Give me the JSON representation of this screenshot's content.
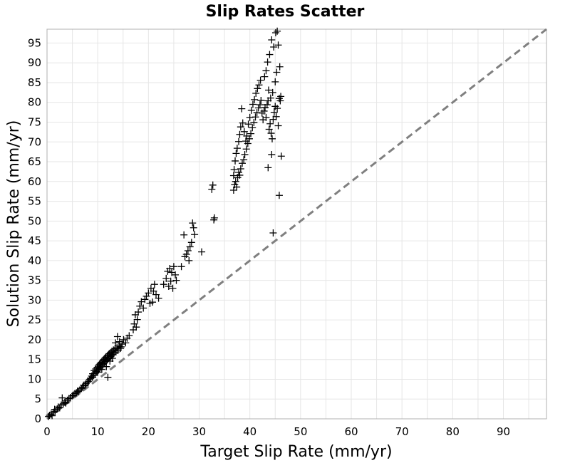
{
  "chart_data": {
    "type": "scatter",
    "title": "Slip Rates Scatter",
    "xlabel": "Target Slip Rate (mm/yr)",
    "ylabel": "Solution Slip Rate (mm/yr)",
    "xlim": [
      0,
      98.5
    ],
    "ylim": [
      0,
      98.5
    ],
    "xticks": [
      0,
      10,
      20,
      30,
      40,
      50,
      60,
      70,
      80,
      90
    ],
    "yticks": [
      0,
      5,
      10,
      15,
      20,
      25,
      30,
      35,
      40,
      45,
      50,
      55,
      60,
      65,
      70,
      75,
      80,
      85,
      90,
      95
    ],
    "grid": true,
    "marker": "plus",
    "marker_color": "#000000",
    "reference_line": {
      "style": "dashed",
      "color": "#808080",
      "from": [
        0,
        0
      ],
      "to": [
        98.5,
        98.5
      ]
    },
    "points": [
      [
        0.3,
        0.6
      ],
      [
        0.5,
        0.9
      ],
      [
        0.8,
        1.2
      ],
      [
        1.0,
        0.8
      ],
      [
        1.3,
        1.6
      ],
      [
        1.5,
        2.4
      ],
      [
        1.6,
        1.9
      ],
      [
        2.0,
        2.5
      ],
      [
        2.2,
        3.0
      ],
      [
        2.5,
        2.8
      ],
      [
        2.8,
        3.5
      ],
      [
        3.0,
        5.3
      ],
      [
        3.2,
        3.8
      ],
      [
        3.5,
        4.2
      ],
      [
        3.7,
        4.0
      ],
      [
        4.0,
        4.7
      ],
      [
        4.3,
        5.1
      ],
      [
        4.6,
        5.4
      ],
      [
        5.0,
        5.8
      ],
      [
        5.2,
        6.0
      ],
      [
        5.5,
        6.4
      ],
      [
        5.8,
        6.6
      ],
      [
        6.0,
        7.0
      ],
      [
        6.2,
        6.9
      ],
      [
        6.5,
        7.3
      ],
      [
        6.8,
        7.7
      ],
      [
        7.0,
        8.0
      ],
      [
        7.2,
        8.5
      ],
      [
        7.5,
        8.4
      ],
      [
        7.7,
        8.9
      ],
      [
        8.0,
        9.3
      ],
      [
        8.2,
        9.5
      ],
      [
        8.4,
        10.0
      ],
      [
        8.6,
        10.3
      ],
      [
        8.8,
        10.8
      ],
      [
        9.0,
        10.5
      ],
      [
        9.0,
        11.4
      ],
      [
        9.2,
        11.0
      ],
      [
        9.3,
        12.2
      ],
      [
        9.5,
        11.5
      ],
      [
        9.6,
        12.6
      ],
      [
        9.8,
        12.0
      ],
      [
        9.9,
        13.0
      ],
      [
        10.0,
        11.8
      ],
      [
        10.1,
        13.3
      ],
      [
        10.2,
        12.4
      ],
      [
        10.3,
        13.7
      ],
      [
        10.4,
        12.8
      ],
      [
        10.5,
        14.0
      ],
      [
        10.6,
        13.1
      ],
      [
        10.7,
        14.3
      ],
      [
        10.8,
        12.5
      ],
      [
        10.9,
        13.6
      ],
      [
        11.0,
        14.7
      ],
      [
        11.1,
        13.9
      ],
      [
        11.2,
        15.0
      ],
      [
        11.3,
        14.2
      ],
      [
        11.4,
        15.3
      ],
      [
        11.5,
        14.5
      ],
      [
        11.6,
        15.6
      ],
      [
        11.7,
        13.2
      ],
      [
        11.8,
        14.8
      ],
      [
        11.9,
        15.9
      ],
      [
        12.0,
        15.1
      ],
      [
        12.0,
        10.5
      ],
      [
        12.1,
        16.2
      ],
      [
        12.2,
        15.4
      ],
      [
        12.3,
        16.5
      ],
      [
        12.4,
        14.6
      ],
      [
        12.5,
        15.7
      ],
      [
        12.6,
        16.8
      ],
      [
        12.7,
        16.0
      ],
      [
        12.8,
        17.1
      ],
      [
        12.9,
        15.3
      ],
      [
        13.0,
        16.3
      ],
      [
        13.1,
        17.4
      ],
      [
        13.2,
        16.6
      ],
      [
        13.4,
        17.7
      ],
      [
        13.6,
        16.9
      ],
      [
        13.8,
        18.0
      ],
      [
        14.0,
        17.3
      ],
      [
        14.2,
        18.4
      ],
      [
        14.5,
        17.8
      ],
      [
        14.8,
        18.9
      ],
      [
        15.1,
        20.0
      ],
      [
        15.5,
        19.2
      ],
      [
        15.8,
        20.4
      ],
      [
        16.2,
        21.0
      ],
      [
        13.5,
        19.2
      ],
      [
        13.9,
        20.8
      ],
      [
        14.3,
        19.5
      ],
      [
        14.6,
        18.2
      ],
      [
        17.0,
        22.5
      ],
      [
        17.2,
        24.0
      ],
      [
        17.4,
        26.3
      ],
      [
        17.6,
        23.2
      ],
      [
        17.8,
        25.1
      ],
      [
        18.0,
        27.0
      ],
      [
        18.3,
        28.5
      ],
      [
        18.6,
        29.6
      ],
      [
        19.0,
        28.0
      ],
      [
        19.3,
        30.2
      ],
      [
        19.6,
        31.0
      ],
      [
        20.0,
        31.8
      ],
      [
        20.3,
        29.2
      ],
      [
        20.5,
        33.0
      ],
      [
        20.8,
        29.5
      ],
      [
        21.0,
        32.3
      ],
      [
        21.2,
        34.0
      ],
      [
        21.5,
        31.4
      ],
      [
        22.0,
        30.5
      ],
      [
        23.0,
        34.0
      ],
      [
        23.5,
        35.5
      ],
      [
        23.8,
        37.3
      ],
      [
        24.0,
        33.5
      ],
      [
        24.2,
        38.0
      ],
      [
        24.4,
        34.8
      ],
      [
        24.6,
        37.0
      ],
      [
        24.8,
        33.0
      ],
      [
        25.0,
        38.5
      ],
      [
        25.3,
        36.4
      ],
      [
        25.5,
        35.0
      ],
      [
        26.5,
        38.5
      ],
      [
        27.2,
        41.0
      ],
      [
        27.5,
        41.6
      ],
      [
        27.8,
        42.5
      ],
      [
        28.0,
        40.0
      ],
      [
        28.2,
        43.5
      ],
      [
        28.5,
        44.6
      ],
      [
        28.7,
        49.5
      ],
      [
        28.9,
        48.3
      ],
      [
        29.1,
        46.6
      ],
      [
        27.0,
        46.5
      ],
      [
        30.5,
        42.2
      ],
      [
        32.5,
        58.0
      ],
      [
        32.7,
        59.1
      ],
      [
        32.9,
        50.3
      ],
      [
        33.0,
        50.8
      ],
      [
        36.8,
        57.8
      ],
      [
        37.0,
        59.2
      ],
      [
        37.2,
        60.0
      ],
      [
        37.4,
        58.6
      ],
      [
        37.6,
        61.0
      ],
      [
        37.8,
        62.3
      ],
      [
        38.0,
        61.6
      ],
      [
        38.2,
        63.2
      ],
      [
        38.5,
        64.6
      ],
      [
        38.8,
        65.5
      ],
      [
        39.0,
        66.8
      ],
      [
        39.3,
        68.2
      ],
      [
        39.6,
        69.6
      ],
      [
        39.9,
        70.8
      ],
      [
        40.2,
        72.1
      ],
      [
        40.5,
        73.6
      ],
      [
        40.8,
        74.9
      ],
      [
        41.1,
        76.3
      ],
      [
        41.4,
        77.4
      ],
      [
        41.7,
        78.6
      ],
      [
        42.0,
        79.4
      ],
      [
        42.2,
        80.5
      ],
      [
        36.8,
        61.5
      ],
      [
        36.9,
        63.0
      ],
      [
        37.1,
        65.2
      ],
      [
        37.3,
        67.1
      ],
      [
        37.5,
        68.4
      ],
      [
        37.8,
        70.1
      ],
      [
        38.0,
        71.9
      ],
      [
        38.2,
        73.8
      ],
      [
        38.4,
        78.4
      ],
      [
        38.6,
        74.8
      ],
      [
        38.9,
        72.6
      ],
      [
        39.2,
        70.2
      ],
      [
        39.4,
        71.5
      ],
      [
        39.7,
        74.5
      ],
      [
        40.0,
        76.2
      ],
      [
        40.3,
        78.0
      ],
      [
        40.6,
        79.5
      ],
      [
        40.9,
        80.7
      ],
      [
        41.2,
        82.3
      ],
      [
        41.5,
        83.5
      ],
      [
        41.8,
        84.4
      ],
      [
        42.1,
        85.6
      ],
      [
        42.4,
        77.3
      ],
      [
        42.6,
        75.6
      ],
      [
        42.8,
        77.8
      ],
      [
        43.0,
        78.7
      ],
      [
        43.2,
        76.2
      ],
      [
        43.4,
        79.4
      ],
      [
        43.6,
        80.4
      ],
      [
        43.8,
        73.2
      ],
      [
        44.0,
        74.6
      ],
      [
        44.2,
        72.2
      ],
      [
        44.4,
        70.8
      ],
      [
        44.6,
        75.7
      ],
      [
        44.8,
        77.5
      ],
      [
        45.0,
        79.0
      ],
      [
        45.2,
        76.4
      ],
      [
        45.4,
        78.5
      ],
      [
        45.6,
        74.1
      ],
      [
        45.8,
        81.0
      ],
      [
        46.0,
        80.4
      ],
      [
        42.9,
        86.5
      ],
      [
        43.2,
        88.0
      ],
      [
        43.5,
        90.2
      ],
      [
        43.9,
        92.1
      ],
      [
        44.3,
        95.8
      ],
      [
        44.7,
        94.0
      ],
      [
        45.1,
        97.6
      ],
      [
        45.4,
        98.0
      ],
      [
        45.6,
        94.5
      ],
      [
        45.9,
        89.0
      ],
      [
        45.3,
        87.6
      ],
      [
        45.0,
        85.2
      ],
      [
        44.5,
        82.5
      ],
      [
        44.1,
        81.1
      ],
      [
        43.7,
        83.1
      ],
      [
        43.6,
        63.5
      ],
      [
        44.3,
        66.8
      ],
      [
        44.6,
        47.0
      ],
      [
        45.8,
        56.5
      ],
      [
        46.2,
        66.4
      ],
      [
        46.1,
        81.5
      ]
    ]
  }
}
